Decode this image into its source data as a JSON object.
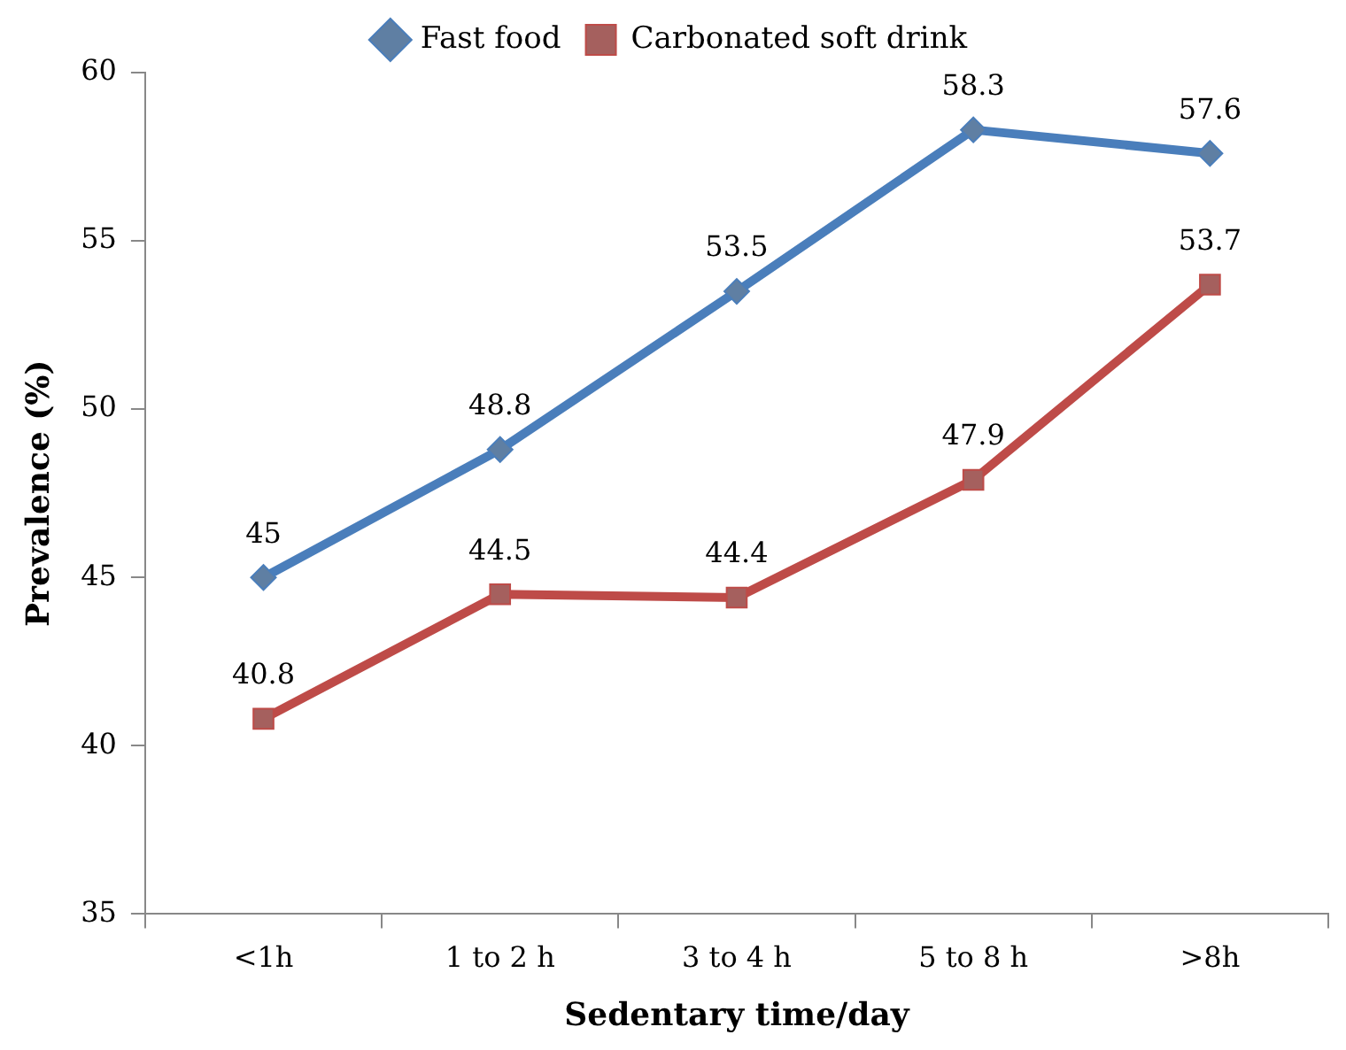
{
  "chart_data": {
    "type": "line",
    "xlabel": "Sedentary time/day",
    "ylabel": "Prevalence (%)",
    "categories": [
      "<1h",
      "1 to 2 h",
      "3 to 4 h",
      "5 to 8 h",
      ">8h"
    ],
    "series": [
      {
        "name": "Fast food",
        "color": "#4a7ebb",
        "marker": "diamond",
        "values": [
          45,
          48.8,
          53.5,
          58.3,
          57.6
        ]
      },
      {
        "name": "Carbonated soft drink",
        "color": "#be4b48",
        "marker": "square",
        "values": [
          40.8,
          44.5,
          44.4,
          47.9,
          53.7
        ]
      }
    ],
    "ylim": [
      35,
      60
    ],
    "yticks": [
      35,
      40,
      45,
      50,
      55,
      60
    ],
    "grid": false,
    "legend": "top",
    "data_labels": true,
    "line_style": "solid"
  }
}
